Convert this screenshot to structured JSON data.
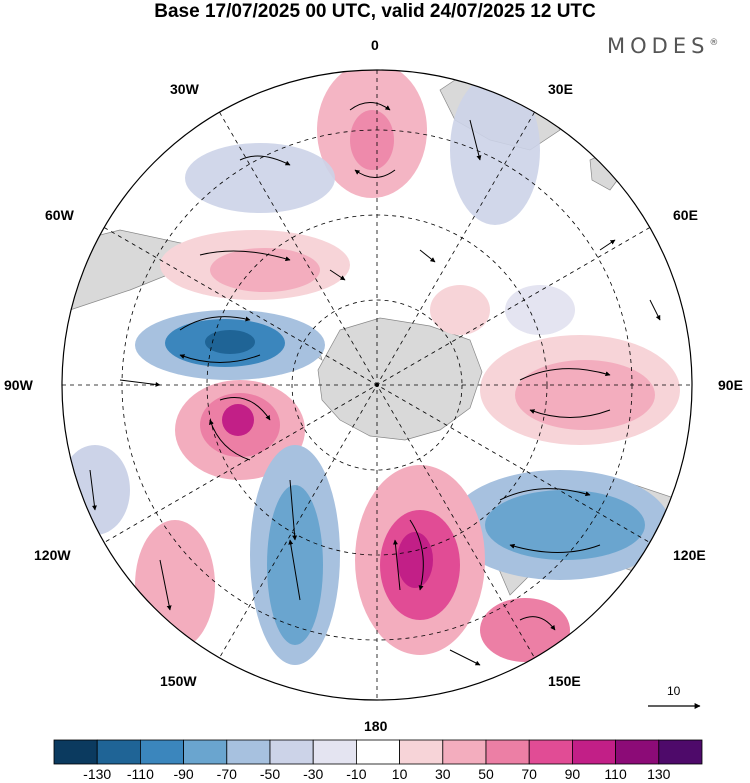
{
  "title": "Base 17/07/2025 00 UTC, valid 24/07/2025 12 UTC",
  "brand": {
    "text": "MODES",
    "mark": "®"
  },
  "longitude_labels": {
    "lon_0": "0",
    "lon_30e": "30E",
    "lon_60e": "60E",
    "lon_90e": "90E",
    "lon_120e": "120E",
    "lon_150e": "150E",
    "lon_180": "180",
    "lon_150w": "150W",
    "lon_120w": "120W",
    "lon_90w": "90W",
    "lon_60w": "60W",
    "lon_30w": "30W"
  },
  "vector_reference": {
    "value": "10",
    "icon": "arrow-right-icon"
  },
  "colorbar": {
    "labels": [
      "-130",
      "-110",
      "-90",
      "-70",
      "-50",
      "-30",
      "-10",
      "10",
      "30",
      "50",
      "70",
      "90",
      "110",
      "130"
    ],
    "colors": [
      "#0b3a5f",
      "#1f6496",
      "#3b86bd",
      "#6aa5cf",
      "#a7c1df",
      "#ccd3e8",
      "#e4e4f1",
      "#ffffff",
      "#f7d4d8",
      "#f3adbe",
      "#ec7fa5",
      "#e14c95",
      "#c21f87",
      "#8c0b77",
      "#4e0a6a"
    ]
  },
  "map_style": {
    "projection": "south-polar-stereographic",
    "land_color": "#d9d9d9",
    "graticule": "dashed",
    "field": "geopotential-height-anomaly",
    "overlay": "wind-vectors"
  }
}
